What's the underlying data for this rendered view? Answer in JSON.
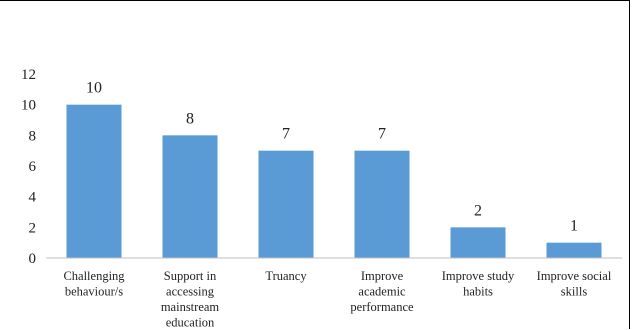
{
  "chart_data": {
    "type": "bar",
    "title": "",
    "xlabel": "",
    "ylabel": "",
    "ylim": [
      0,
      12
    ],
    "yticks": [
      0,
      2,
      4,
      6,
      8,
      10,
      12
    ],
    "grid": false,
    "categories": [
      [
        "Challenging",
        "behaviour/s"
      ],
      [
        "Support in",
        "accessing",
        "mainstream",
        "education"
      ],
      [
        "Truancy"
      ],
      [
        "Improve",
        "academic",
        "performance"
      ],
      [
        "Improve study",
        "habits"
      ],
      [
        "Improve social",
        "skills"
      ]
    ],
    "values": [
      10,
      8,
      7,
      7,
      2,
      1
    ],
    "data_labels": [
      "10",
      "8",
      "7",
      "7",
      "2",
      "1"
    ],
    "colors": {
      "bar": "#5B9BD5",
      "axis": "#BFBFBF"
    }
  }
}
